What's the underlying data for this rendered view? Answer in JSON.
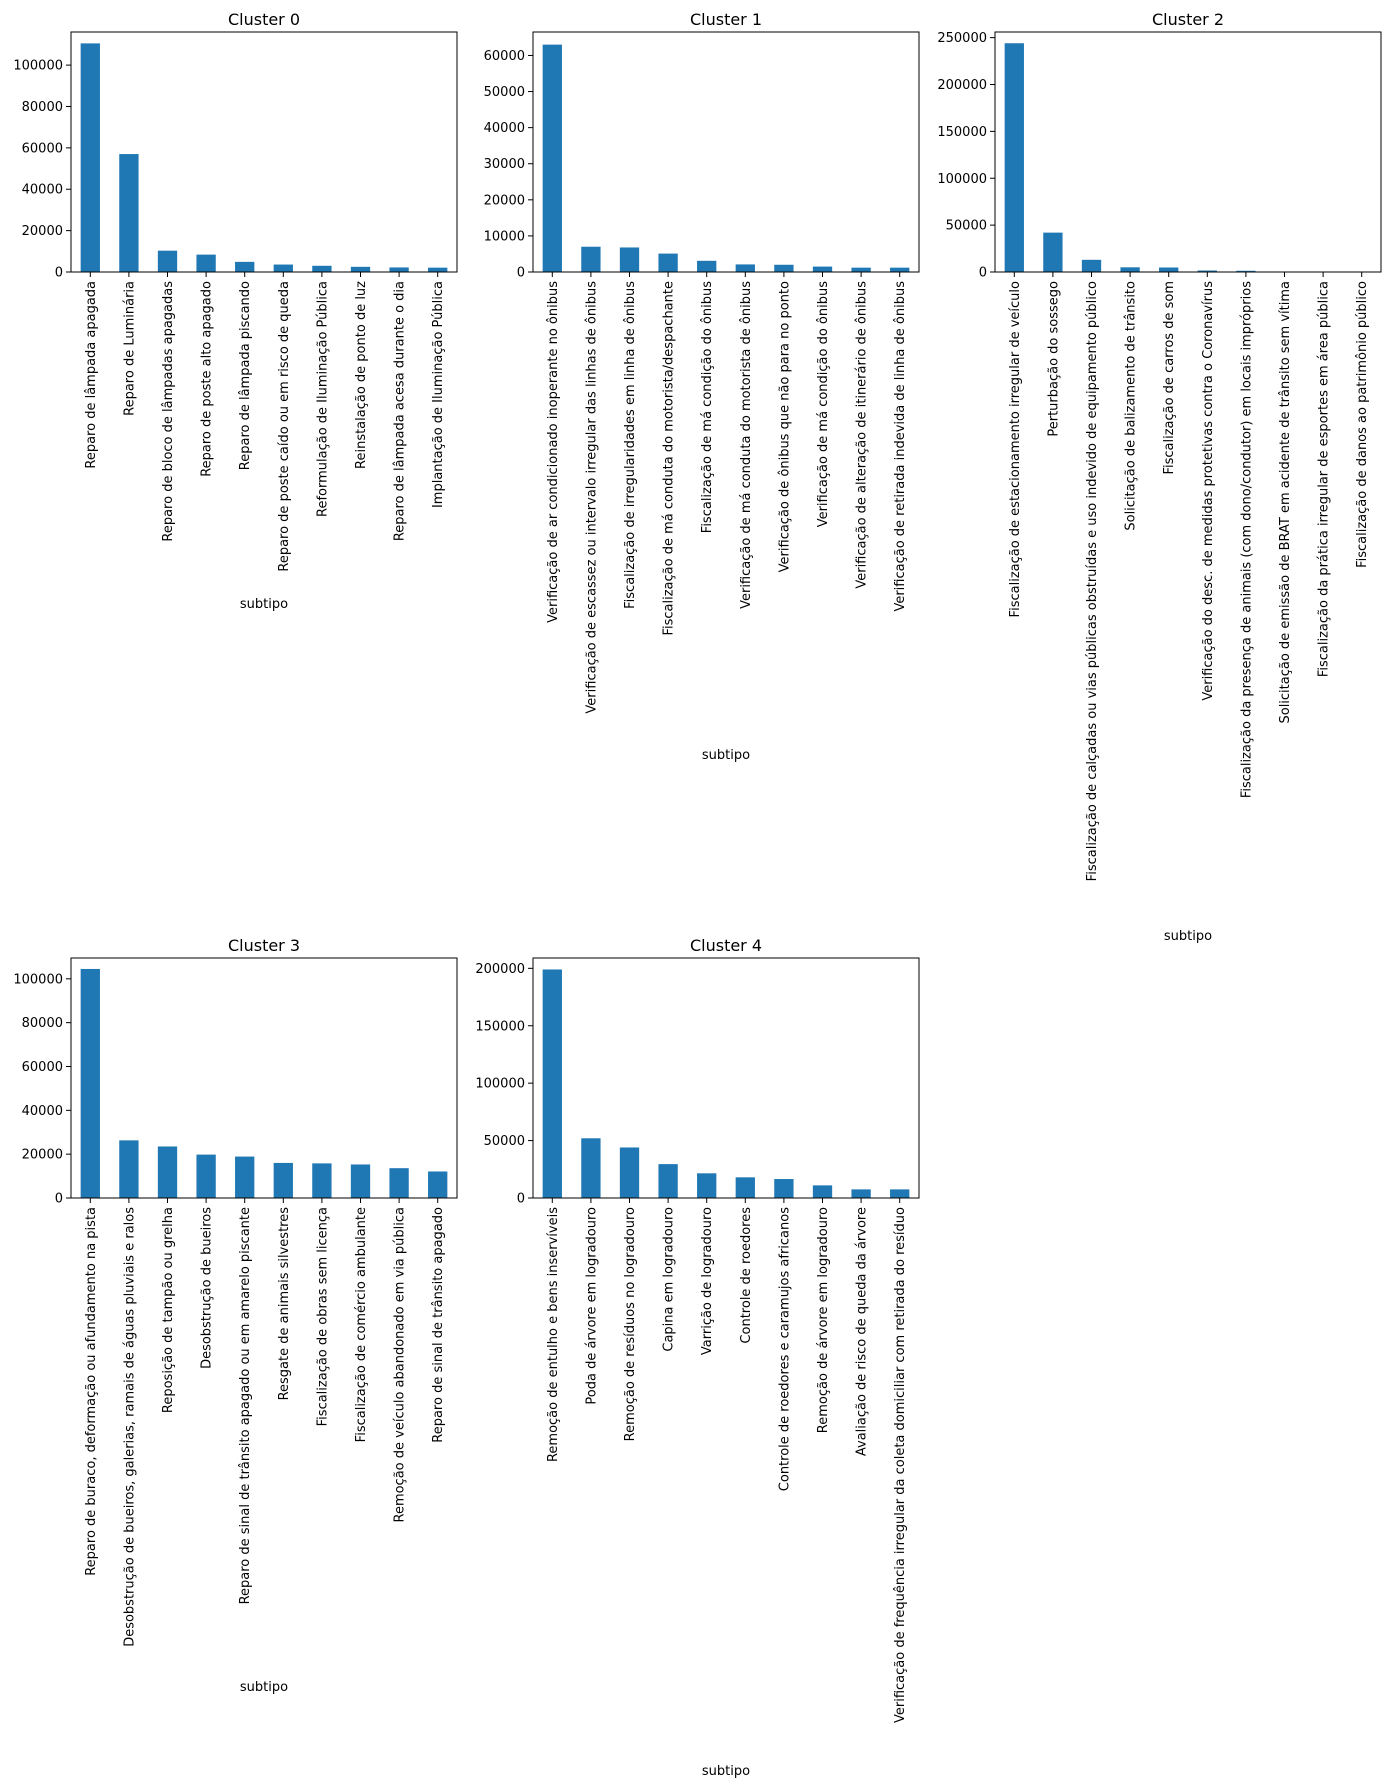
{
  "chart_data": [
    {
      "type": "bar",
      "title": "Cluster 0",
      "xlabel": "subtipo",
      "ylabel": "",
      "ylim": [
        0,
        116000
      ],
      "yticks": [
        0,
        20000,
        40000,
        60000,
        80000,
        100000
      ],
      "categories": [
        "Reparo de lâmpada apagada",
        "Reparo de Luminária",
        "Reparo de bloco de lâmpadas apagadas",
        "Reparo de poste alto apagado",
        "Reparo de lâmpada piscando",
        "Reparo de poste caído ou em risco de queda",
        "Reformulação de Iluminação Pública",
        "Reinstalação de ponto de luz",
        "Reparo de lâmpada acesa durante o dia",
        "Implantação de Iluminação Pública"
      ],
      "values": [
        110500,
        57000,
        10300,
        8400,
        4900,
        3600,
        3000,
        2500,
        2200,
        2100
      ],
      "color": "#1f77b4"
    },
    {
      "type": "bar",
      "title": "Cluster 1",
      "xlabel": "subtipo",
      "ylabel": "",
      "ylim": [
        0,
        66500
      ],
      "yticks": [
        0,
        10000,
        20000,
        30000,
        40000,
        50000,
        60000
      ],
      "categories": [
        "Verificação de ar condicionado inoperante no ônibus",
        "Verificação de escassez ou intervalo irregular das linhas de ônibus",
        "Fiscalização de irregularidades em linha de ônibus",
        "Fiscalização de má conduta do motorista/despachante",
        "Fiscalização de má condição do ônibus",
        "Verificação de má conduta do motorista de ônibus",
        "Verificação de ônibus que não para no ponto",
        "Verificação de má condição do ônibus",
        "Verificação de alteração de itinerário de ônibus",
        "Verificação de retirada indevida de linha de ônibus"
      ],
      "values": [
        63000,
        7000,
        6800,
        5100,
        3100,
        2100,
        2000,
        1500,
        1200,
        1200
      ],
      "color": "#1f77b4"
    },
    {
      "type": "bar",
      "title": "Cluster 2",
      "xlabel": "subtipo",
      "ylabel": "",
      "ylim": [
        0,
        256000
      ],
      "yticks": [
        0,
        50000,
        100000,
        150000,
        200000,
        250000
      ],
      "categories": [
        "Fiscalização de estacionamento irregular de veículo",
        "Perturbação do sossego",
        "Fiscalização de calçadas ou vias públicas obstruídas e uso indevido de equipamento público",
        "Solicitação de balizamento de trânsito",
        "Fiscalização de carros de som",
        "Verificação do desc. de medidas protetivas contra o Coronavírus",
        "Fiscalização da presença de animais (com dono/condutor) em locais impróprios",
        "Solicitação de emissão de BRAT em acidente de trânsito sem vítima",
        "Fiscalização da prática irregular de esportes em área pública",
        "Fiscalização de danos ao patrimônio público"
      ],
      "values": [
        244000,
        42000,
        13000,
        5000,
        4800,
        1600,
        1300,
        400,
        300,
        200
      ],
      "color": "#1f77b4"
    },
    {
      "type": "bar",
      "title": "Cluster 3",
      "xlabel": "subtipo",
      "ylabel": "",
      "ylim": [
        0,
        109500
      ],
      "yticks": [
        0,
        20000,
        40000,
        60000,
        80000,
        100000
      ],
      "categories": [
        "Reparo de buraco, deformação ou afundamento na pista",
        "Desobstrução de bueiros, galerias, ramais de águas pluviais e ralos",
        "Reposição de tampão ou grelha",
        "Desobstrução de bueiros",
        "Reparo de sinal de trânsito apagado ou em amarelo piscante",
        "Resgate de animais silvestres",
        "Fiscalização de obras sem licença",
        "Fiscalização de comércio ambulante",
        "Remoção de veículo abandonado em via pública",
        "Reparo de sinal de trânsito apagado"
      ],
      "values": [
        104500,
        26300,
        23500,
        19800,
        18900,
        16000,
        15800,
        15300,
        13600,
        12100
      ],
      "color": "#1f77b4"
    },
    {
      "type": "bar",
      "title": "Cluster 4",
      "xlabel": "subtipo",
      "ylabel": "",
      "ylim": [
        0,
        209000
      ],
      "yticks": [
        0,
        50000,
        100000,
        150000,
        200000
      ],
      "categories": [
        "Remoção de entulho e bens inservíveis",
        "Poda de árvore em logradouro",
        "Remoção de resíduos no logradouro",
        "Capina em logradouro",
        "Varrição de logradouro",
        "Controle de roedores",
        "Controle de roedores e caramujos africanos",
        "Remoção de árvore em logradouro",
        "Avaliação de risco de queda da árvore",
        "Verificação de frequência irregular da coleta domiciliar com retirada do resíduo"
      ],
      "values": [
        199000,
        52000,
        44000,
        29500,
        21500,
        18000,
        16500,
        11000,
        7500,
        7500
      ],
      "color": "#1f77b4"
    }
  ]
}
